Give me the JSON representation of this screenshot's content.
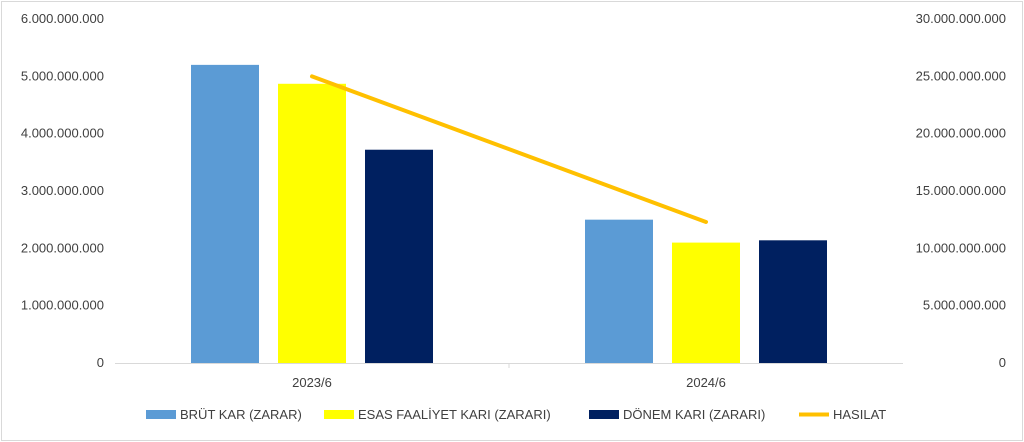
{
  "chart_data": {
    "type": "bar",
    "categories": [
      "2023/6",
      "2024/6"
    ],
    "series": [
      {
        "name": "BRÜT KAR (ZARAR)",
        "values": [
          5200000000,
          2500000000
        ],
        "color": "#5B9BD5",
        "axis": "left"
      },
      {
        "name": "ESAS FAALİYET KARI (ZARARI)",
        "values": [
          4870000000,
          2100000000
        ],
        "color": "#FFFF00",
        "axis": "left"
      },
      {
        "name": "DÖNEM KARI (ZARARI)",
        "values": [
          3720000000,
          2140000000
        ],
        "color": "#002060",
        "axis": "left"
      }
    ],
    "line_series": [
      {
        "name": "HASILAT",
        "values": [
          25000000000,
          12300000000
        ],
        "color": "#FFC000",
        "axis": "right"
      }
    ],
    "y_left": {
      "ylim": [
        0,
        6000000000
      ],
      "ticks": [
        "0",
        "1.000.000.000",
        "2.000.000.000",
        "3.000.000.000",
        "4.000.000.000",
        "5.000.000.000",
        "6.000.000.000"
      ]
    },
    "y_right": {
      "ylim": [
        0,
        30000000000
      ],
      "ticks": [
        "0",
        "5.000.000.000",
        "10.000.000.000",
        "15.000.000.000",
        "20.000.000.000",
        "25.000.000.000",
        "30.000.000.000"
      ]
    },
    "legend_position": "bottom",
    "grid": false
  }
}
